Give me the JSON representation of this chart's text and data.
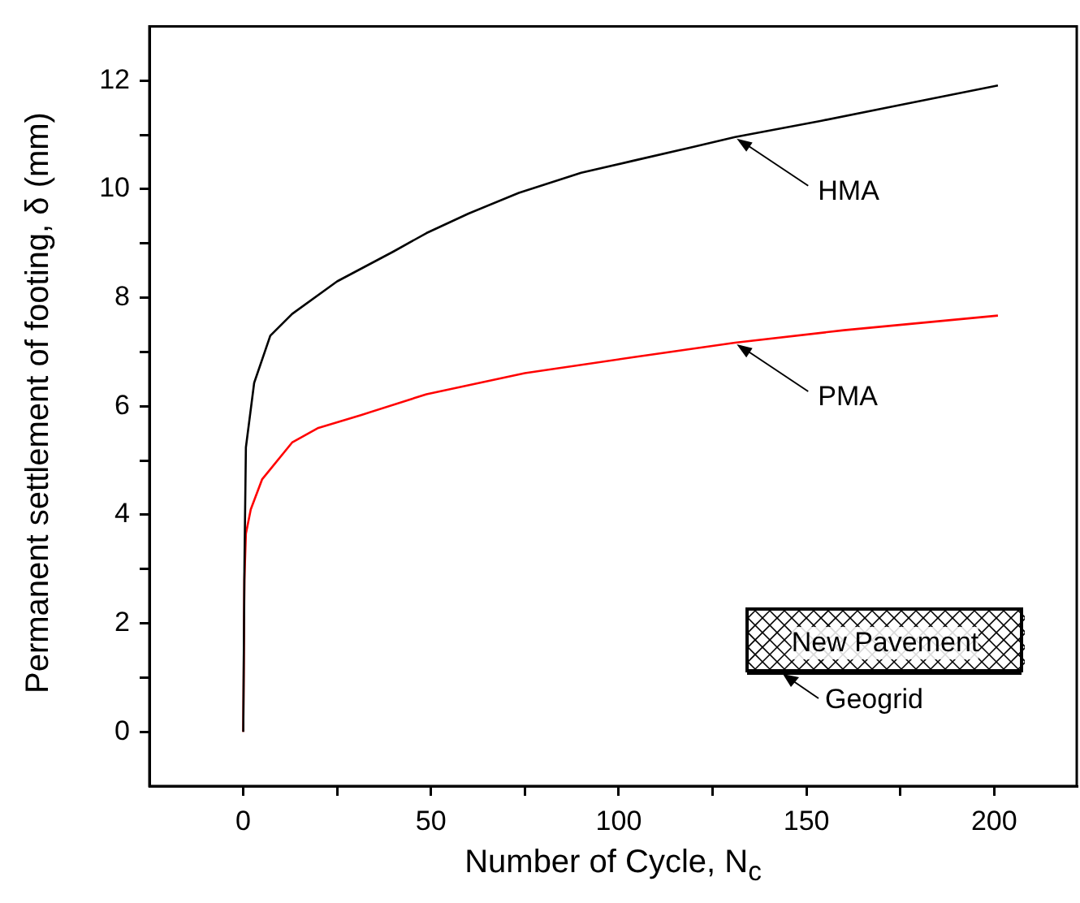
{
  "chart_data": {
    "type": "line",
    "xlabel": "Number of Cycle, N$_{c}$",
    "ylabel": "Permanent settlement of footing, δ (mm)",
    "xlim": [
      -25,
      222
    ],
    "ylim": [
      -1,
      13
    ],
    "xticks": [
      0,
      {
        "value": 25,
        "label": null
      },
      50,
      {
        "value": 75,
        "label": null
      },
      100,
      {
        "value": 125,
        "label": null
      },
      150,
      {
        "value": 175,
        "label": null
      },
      200
    ],
    "yticks": [
      0,
      {
        "value": 1,
        "label": null
      },
      2,
      {
        "value": 3,
        "label": null
      },
      4,
      {
        "value": 5,
        "label": null
      },
      6,
      {
        "value": 7,
        "label": null
      },
      8,
      {
        "value": 9,
        "label": null
      },
      10,
      {
        "value": 11,
        "label": null
      },
      12
    ],
    "grid": false,
    "legend": false,
    "marker": "none",
    "line_style": "solid",
    "series": [
      {
        "color": "#000000",
        "x": [
          0,
          0.3,
          0.7,
          2.9,
          7.2,
          13,
          25,
          40,
          48.8,
          60,
          73.4,
          90,
          103.7,
          120,
          131,
          154,
          175,
          201
        ],
        "values": [
          0,
          3,
          5.24,
          6.43,
          7.3,
          7.7,
          8.3,
          8.85,
          9.19,
          9.55,
          9.93,
          10.3,
          10.52,
          10.78,
          10.96,
          11.26,
          11.55,
          11.91
        ]
      },
      {
        "color": "#ff0000",
        "x": [
          0,
          0.3,
          0.7,
          2,
          5,
          13,
          20,
          31.5,
          48.8,
          75,
          103.7,
          131,
          160,
          201
        ],
        "values": [
          0,
          2.8,
          3.65,
          4.1,
          4.65,
          5.33,
          5.6,
          5.84,
          6.22,
          6.61,
          6.9,
          7.17,
          7.4,
          7.67
        ]
      }
    ],
    "annotations": [
      {
        "text": "HMA",
        "x": 131,
        "y": 10.96
      },
      {
        "text": "PMA",
        "x": 131,
        "y": 7.17
      },
      "New Pavement",
      "Geogrid"
    ]
  }
}
